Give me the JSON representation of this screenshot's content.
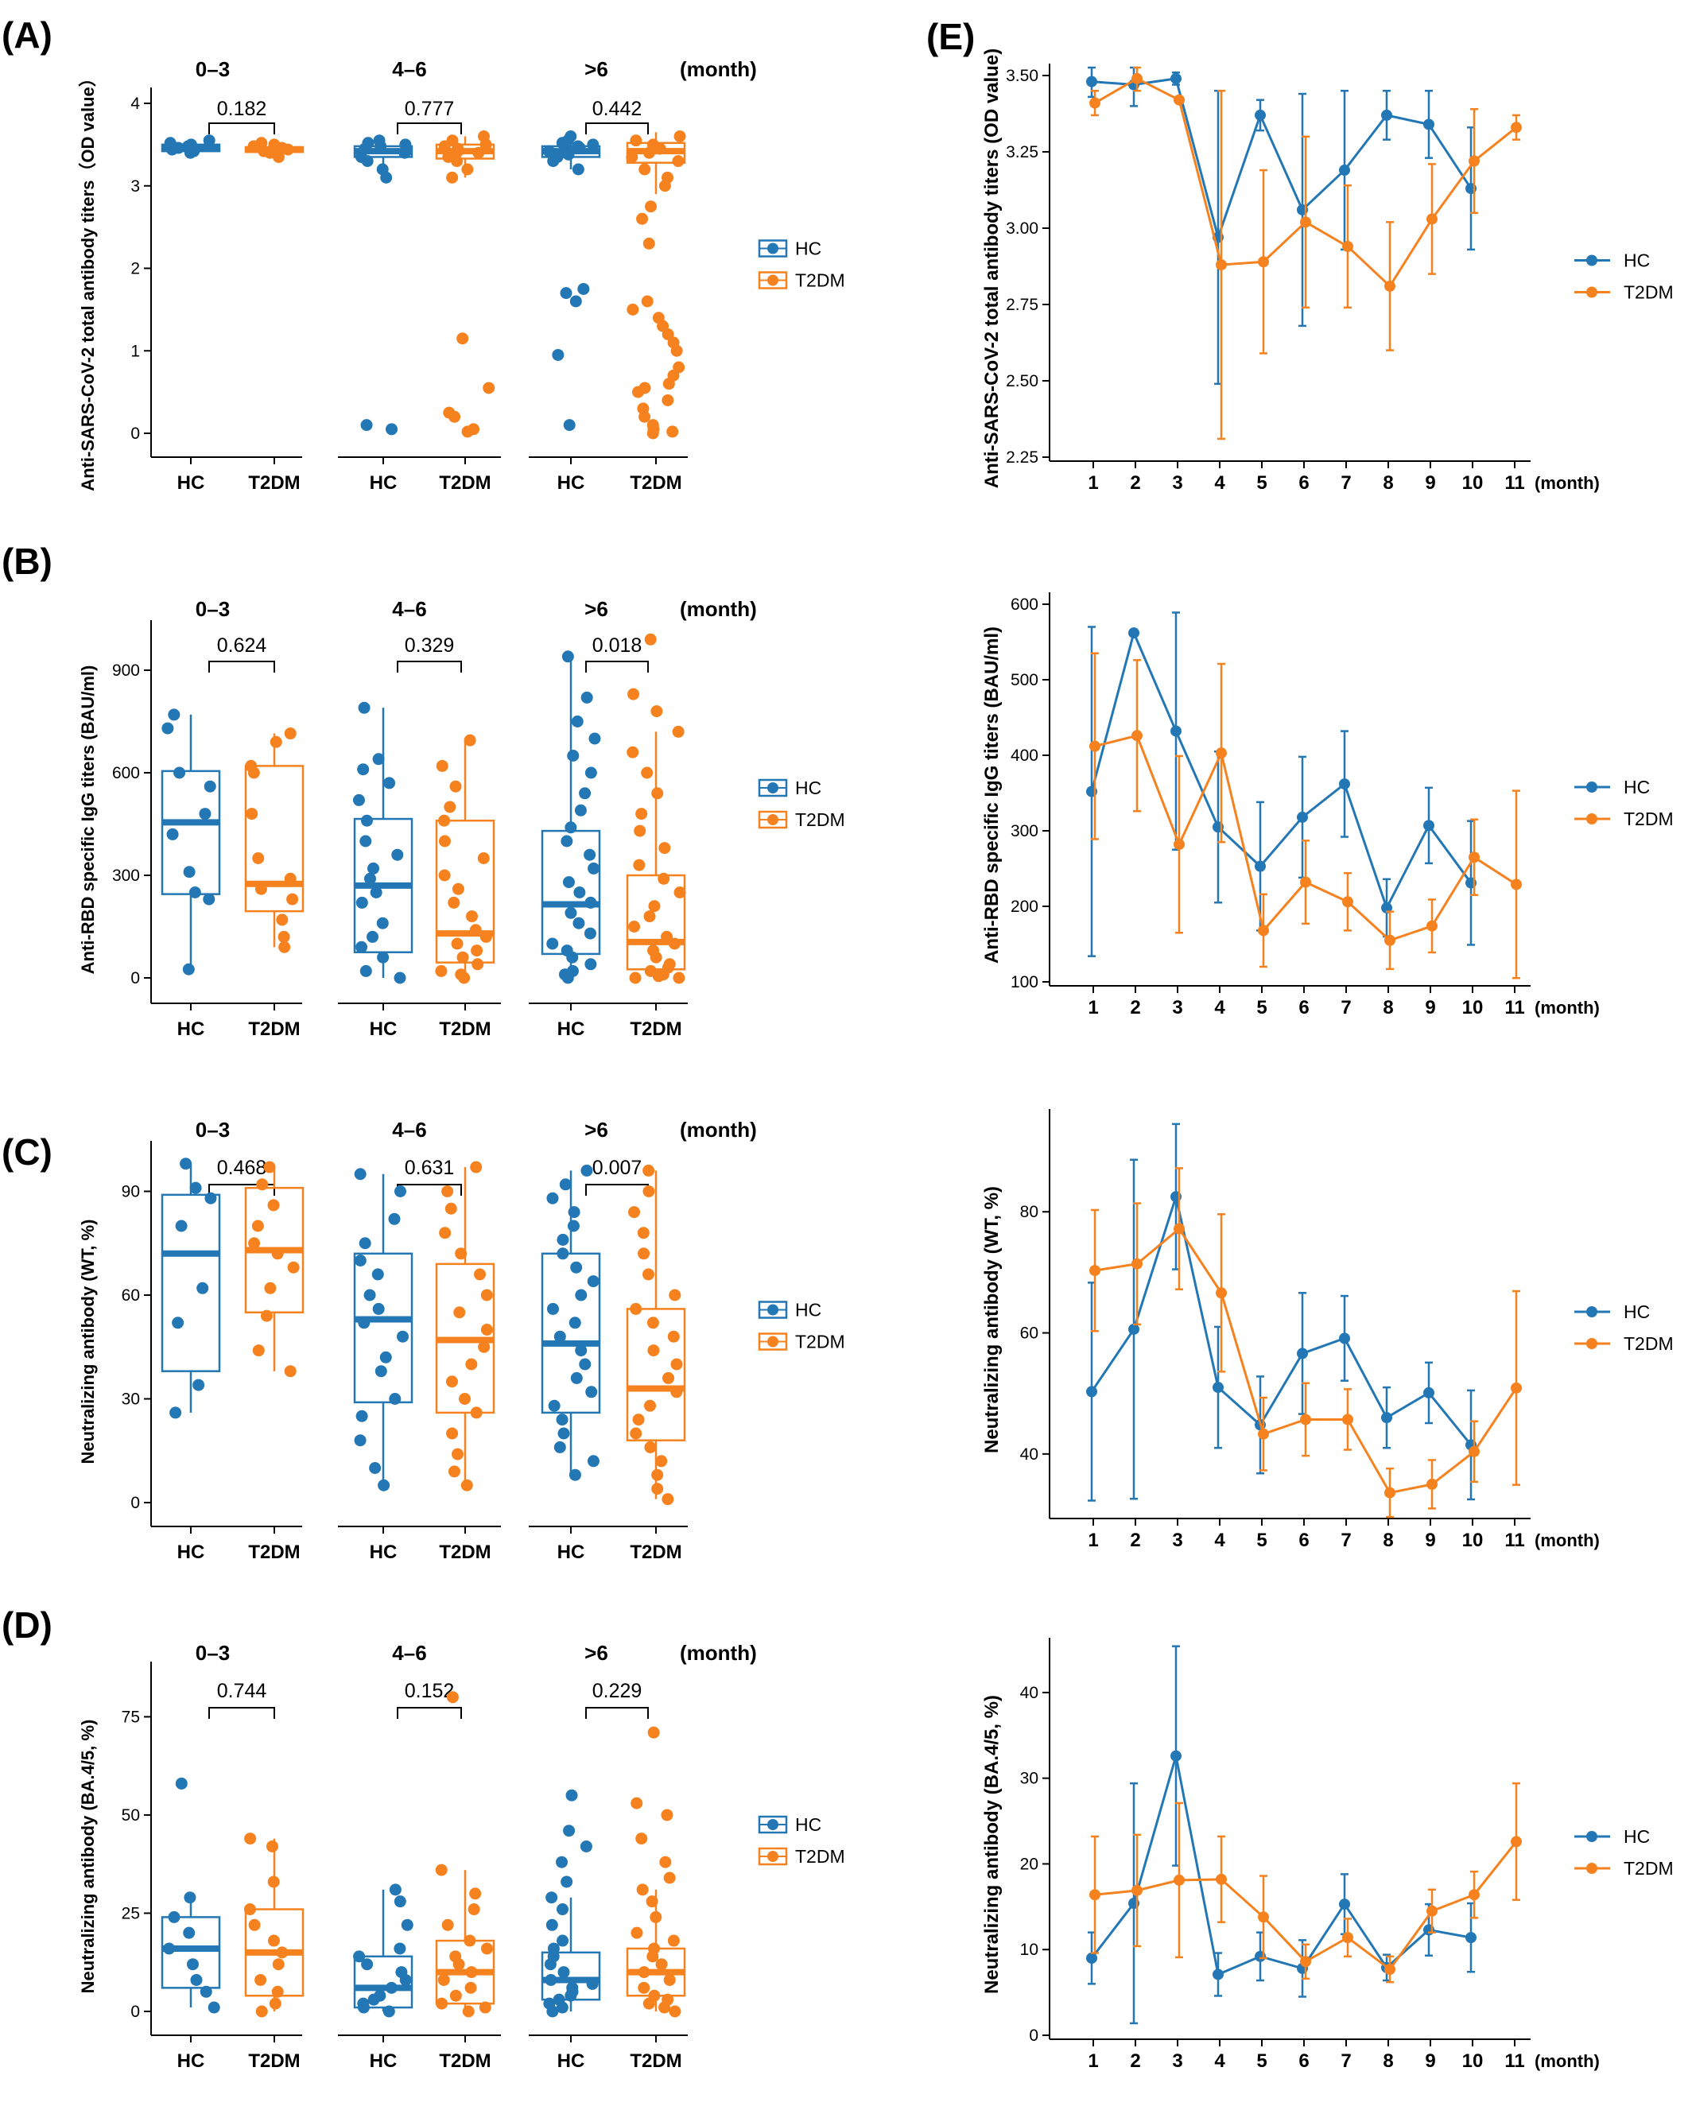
{
  "colors": {
    "hc": "#2277b4",
    "t2dm": "#f5821f",
    "axis": "#000000",
    "bracket": "#000000"
  },
  "panel_letters": [
    "(A)",
    "(B)",
    "(C)",
    "(D)",
    "(E)"
  ],
  "group_labels": [
    "0–3",
    "4–6",
    ">6"
  ],
  "month_label": "(month)",
  "x_categories": [
    "HC",
    "T2DM"
  ],
  "legend": [
    "HC",
    "T2DM"
  ],
  "chart_data": [
    {
      "id": "A",
      "type": "box",
      "ylabel": "Anti-SARS-CoV-2 total antibody titers（OD value）",
      "ylim": [
        0,
        4
      ],
      "yticks": [
        0,
        1,
        2,
        3,
        4
      ],
      "groups": [
        {
          "name": "0–3",
          "p": "0.182",
          "HC": {
            "median": 3.46,
            "q1": 3.42,
            "q3": 3.5,
            "wlo": 3.4,
            "whi": 3.55,
            "points": [
              3.4,
              3.42,
              3.44,
              3.46,
              3.48,
              3.5,
              3.52,
              3.55
            ]
          },
          "T2DM": {
            "median": 3.44,
            "q1": 3.41,
            "q3": 3.47,
            "wlo": 3.35,
            "whi": 3.52,
            "points": [
              3.35,
              3.4,
              3.42,
              3.44,
              3.46,
              3.48,
              3.5,
              3.52
            ]
          }
        },
        {
          "name": "4–6",
          "p": "0.777",
          "HC": {
            "median": 3.42,
            "q1": 3.35,
            "q3": 3.48,
            "wlo": 3.1,
            "whi": 3.55,
            "points": [
              0.05,
              0.1,
              3.1,
              3.2,
              3.3,
              3.35,
              3.4,
              3.42,
              3.45,
              3.48,
              3.5,
              3.52,
              3.55
            ]
          },
          "T2DM": {
            "median": 3.42,
            "q1": 3.33,
            "q3": 3.5,
            "wlo": 3.1,
            "whi": 3.6,
            "points": [
              0.02,
              0.05,
              0.2,
              0.25,
              0.55,
              1.15,
              3.1,
              3.2,
              3.3,
              3.35,
              3.4,
              3.42,
              3.45,
              3.48,
              3.5,
              3.55,
              3.6
            ]
          }
        },
        {
          "name": ">6",
          "p": "0.442",
          "HC": {
            "median": 3.42,
            "q1": 3.35,
            "q3": 3.48,
            "wlo": 3.2,
            "whi": 3.6,
            "points": [
              0.1,
              0.95,
              1.6,
              1.7,
              1.75,
              3.2,
              3.3,
              3.35,
              3.38,
              3.4,
              3.42,
              3.44,
              3.46,
              3.48,
              3.5,
              3.52,
              3.55,
              3.6
            ]
          },
          "T2DM": {
            "median": 3.42,
            "q1": 3.28,
            "q3": 3.52,
            "wlo": 2.9,
            "whi": 3.65,
            "points": [
              0.0,
              0.02,
              0.05,
              0.1,
              0.2,
              0.3,
              0.4,
              0.5,
              0.55,
              0.6,
              0.7,
              0.8,
              1.0,
              1.1,
              1.2,
              1.3,
              1.4,
              1.5,
              1.6,
              2.3,
              2.6,
              2.75,
              3.0,
              3.1,
              3.2,
              3.3,
              3.35,
              3.4,
              3.45,
              3.5,
              3.55,
              3.6
            ]
          }
        }
      ]
    },
    {
      "id": "B",
      "type": "box",
      "ylabel": "Anti-RBD specific IgG titers (BAU/ml)",
      "ylim": [
        0,
        1000
      ],
      "yticks": [
        0,
        300,
        600,
        900
      ],
      "groups": [
        {
          "name": "0–3",
          "p": "0.624",
          "HC": {
            "median": 455,
            "q1": 245,
            "q3": 605,
            "wlo": 25,
            "whi": 770,
            "points": [
              25,
              230,
              250,
              310,
              420,
              480,
              560,
              600,
              730,
              770
            ]
          },
          "T2DM": {
            "median": 275,
            "q1": 195,
            "q3": 620,
            "wlo": 90,
            "whi": 715,
            "points": [
              90,
              120,
              170,
              230,
              260,
              290,
              350,
              480,
              600,
              620,
              690,
              715
            ]
          }
        },
        {
          "name": "4–6",
          "p": "0.329",
          "HC": {
            "median": 270,
            "q1": 75,
            "q3": 465,
            "wlo": 0,
            "whi": 790,
            "points": [
              0,
              20,
              60,
              90,
              120,
              160,
              220,
              250,
              290,
              320,
              360,
              400,
              460,
              520,
              570,
              610,
              640,
              790
            ]
          },
          "T2DM": {
            "median": 130,
            "q1": 45,
            "q3": 460,
            "wlo": 0,
            "whi": 695,
            "points": [
              0,
              10,
              20,
              40,
              60,
              80,
              100,
              120,
              140,
              180,
              220,
              260,
              300,
              350,
              400,
              460,
              500,
              560,
              620,
              695
            ]
          }
        },
        {
          "name": ">6",
          "p": "0.018",
          "HC": {
            "median": 215,
            "q1": 70,
            "q3": 430,
            "wlo": 0,
            "whi": 940,
            "points": [
              0,
              10,
              20,
              40,
              60,
              80,
              100,
              130,
              160,
              190,
              220,
              250,
              280,
              320,
              360,
              400,
              440,
              490,
              540,
              600,
              650,
              700,
              750,
              820,
              940
            ]
          },
          "T2DM": {
            "median": 105,
            "q1": 25,
            "q3": 300,
            "wlo": 0,
            "whi": 720,
            "points": [
              0,
              0,
              5,
              10,
              20,
              30,
              40,
              60,
              80,
              100,
              120,
              150,
              180,
              210,
              250,
              290,
              330,
              380,
              430,
              480,
              540,
              600,
              660,
              720,
              780,
              830,
              990
            ]
          }
        }
      ]
    },
    {
      "id": "C",
      "type": "box",
      "ylabel": "Neutralizing antibody (WT, %)",
      "ylim": [
        0,
        100
      ],
      "yticks": [
        0,
        30,
        60,
        90
      ],
      "groups": [
        {
          "name": "0–3",
          "p": "0.468",
          "HC": {
            "median": 72,
            "q1": 38,
            "q3": 89,
            "wlo": 26,
            "whi": 98,
            "points": [
              26,
              34,
              52,
              62,
              80,
              88,
              91,
              98
            ]
          },
          "T2DM": {
            "median": 73,
            "q1": 55,
            "q3": 91,
            "wlo": 38,
            "whi": 97,
            "points": [
              38,
              44,
              54,
              62,
              68,
              72,
              75,
              80,
              86,
              92,
              97
            ]
          }
        },
        {
          "name": "4–6",
          "p": "0.631",
          "HC": {
            "median": 53,
            "q1": 29,
            "q3": 72,
            "wlo": 5,
            "whi": 95,
            "points": [
              5,
              10,
              18,
              25,
              30,
              38,
              42,
              48,
              52,
              56,
              60,
              66,
              70,
              75,
              82,
              90,
              95
            ]
          },
          "T2DM": {
            "median": 47,
            "q1": 26,
            "q3": 69,
            "wlo": 5,
            "whi": 97,
            "points": [
              5,
              9,
              14,
              20,
              26,
              30,
              35,
              40,
              45,
              50,
              55,
              60,
              66,
              72,
              78,
              85,
              90,
              97
            ]
          }
        },
        {
          "name": ">6",
          "p": "0.007",
          "HC": {
            "median": 46,
            "q1": 26,
            "q3": 72,
            "wlo": 8,
            "whi": 96,
            "points": [
              8,
              12,
              16,
              20,
              24,
              28,
              32,
              36,
              40,
              44,
              48,
              52,
              56,
              60,
              64,
              68,
              72,
              76,
              80,
              84,
              88,
              92,
              96
            ]
          },
          "T2DM": {
            "median": 33,
            "q1": 18,
            "q3": 56,
            "wlo": 1,
            "whi": 96,
            "points": [
              1,
              4,
              8,
              12,
              16,
              20,
              24,
              28,
              32,
              36,
              40,
              44,
              48,
              52,
              56,
              60,
              66,
              72,
              78,
              84,
              90,
              96
            ]
          }
        }
      ]
    },
    {
      "id": "D",
      "type": "box",
      "ylabel": "Neutralizing antibody (BA.4/5, %)",
      "ylim": [
        0,
        85
      ],
      "yticks": [
        0,
        25,
        50,
        75
      ],
      "groups": [
        {
          "name": "0–3",
          "p": "0.744",
          "HC": {
            "median": 16,
            "q1": 6,
            "q3": 24,
            "wlo": 1,
            "whi": 29,
            "points": [
              1,
              5,
              8,
              12,
              16,
              20,
              24,
              29,
              58
            ]
          },
          "T2DM": {
            "median": 15,
            "q1": 4,
            "q3": 26,
            "wlo": 0,
            "whi": 44,
            "points": [
              0,
              2,
              5,
              8,
              12,
              15,
              18,
              22,
              26,
              33,
              42,
              44
            ]
          }
        },
        {
          "name": "4–6",
          "p": "0.152",
          "HC": {
            "median": 6,
            "q1": 1,
            "q3": 14,
            "wlo": 0,
            "whi": 31,
            "points": [
              0,
              1,
              2,
              3,
              4,
              6,
              8,
              10,
              12,
              14,
              16,
              22,
              28,
              31
            ]
          },
          "T2DM": {
            "median": 10,
            "q1": 2,
            "q3": 18,
            "wlo": 0,
            "whi": 36,
            "points": [
              0,
              1,
              2,
              4,
              6,
              8,
              10,
              12,
              14,
              16,
              18,
              22,
              26,
              30,
              36,
              80
            ]
          }
        },
        {
          "name": ">6",
          "p": "0.229",
          "HC": {
            "median": 8,
            "q1": 3,
            "q3": 15,
            "wlo": 0,
            "whi": 29,
            "points": [
              0,
              1,
              2,
              3,
              4,
              5,
              6,
              7,
              8,
              10,
              12,
              14,
              16,
              18,
              22,
              26,
              29,
              33,
              38,
              42,
              46,
              55
            ]
          },
          "T2DM": {
            "median": 10,
            "q1": 4,
            "q3": 16,
            "wlo": 0,
            "whi": 31,
            "points": [
              0,
              1,
              2,
              3,
              4,
              6,
              8,
              10,
              12,
              14,
              16,
              18,
              20,
              24,
              28,
              31,
              34,
              38,
              44,
              50,
              53,
              71
            ]
          }
        }
      ]
    },
    {
      "id": "E1",
      "type": "line",
      "ylabel": "Anti-SARS-CoV-2 total antibody titers (OD value)",
      "ylim": [
        2.25,
        3.5
      ],
      "yticks": [
        "2.25",
        "2.50",
        "2.75",
        "3.00",
        "3.25",
        "3.50"
      ],
      "x": [
        1,
        2,
        3,
        4,
        5,
        6,
        7,
        8,
        9,
        10,
        11
      ],
      "series": [
        {
          "name": "HC",
          "y": [
            3.48,
            3.47,
            3.49,
            2.97,
            3.37,
            3.06,
            3.19,
            3.37,
            3.34,
            3.13,
            null
          ],
          "err": [
            0.05,
            0.07,
            0.02,
            0.48,
            0.05,
            0.38,
            0.26,
            0.08,
            0.11,
            0.2,
            null
          ]
        },
        {
          "name": "T2DM",
          "y": [
            3.41,
            3.49,
            3.42,
            2.88,
            2.89,
            3.02,
            2.94,
            2.81,
            3.03,
            3.22,
            3.33
          ],
          "err": [
            0.04,
            0.04,
            0.01,
            0.57,
            0.3,
            0.28,
            0.2,
            0.21,
            0.18,
            0.17,
            0.04
          ]
        }
      ]
    },
    {
      "id": "E2",
      "type": "line",
      "ylabel": "Anti-RBD specific IgG titers (BAU/ml)",
      "ylim": [
        100,
        600
      ],
      "yticks": [
        "100",
        "200",
        "300",
        "400",
        "500",
        "600"
      ],
      "x": [
        1,
        2,
        3,
        4,
        5,
        6,
        7,
        8,
        9,
        10,
        11
      ],
      "series": [
        {
          "name": "HC",
          "y": [
            352,
            562,
            432,
            305,
            253,
            318,
            362,
            198,
            307,
            231,
            null
          ],
          "err": [
            218,
            0,
            157,
            100,
            85,
            80,
            70,
            38,
            50,
            82,
            null
          ]
        },
        {
          "name": "T2DM",
          "y": [
            412,
            426,
            282,
            403,
            168,
            232,
            206,
            155,
            174,
            265,
            229
          ],
          "err": [
            123,
            100,
            117,
            118,
            48,
            55,
            38,
            38,
            35,
            50,
            124
          ]
        }
      ]
    },
    {
      "id": "E3",
      "type": "line",
      "ylabel": "Neutralizing antibody (WT, %)",
      "ylim": [
        30,
        95
      ],
      "yticks": [
        "40",
        "60",
        "80"
      ],
      "x": [
        1,
        2,
        3,
        4,
        5,
        6,
        7,
        8,
        9,
        10,
        11
      ],
      "series": [
        {
          "name": "HC",
          "y": [
            50.3,
            60.6,
            82.5,
            51,
            44.8,
            56.6,
            59.1,
            46,
            50.1,
            41.5,
            null
          ],
          "err": [
            18,
            28,
            12,
            10,
            8,
            10,
            7,
            5,
            5,
            9,
            null
          ]
        },
        {
          "name": "T2DM",
          "y": [
            70.3,
            71.4,
            77.2,
            66.6,
            43.3,
            45.7,
            45.7,
            33.6,
            35,
            40.4,
            50.9
          ],
          "err": [
            10,
            10,
            10,
            13,
            6,
            6,
            5,
            4,
            4,
            5,
            16
          ]
        }
      ]
    },
    {
      "id": "E4",
      "type": "line",
      "ylabel": "Neutralizing antibody (BA.4/5, %)",
      "ylim": [
        0,
        45
      ],
      "yticks": [
        "0",
        "10",
        "20",
        "30",
        "40"
      ],
      "x": [
        1,
        2,
        3,
        4,
        5,
        6,
        7,
        8,
        9,
        10,
        11
      ],
      "series": [
        {
          "name": "HC",
          "y": [
            9,
            15.4,
            32.6,
            7.1,
            9.2,
            7.8,
            15.3,
            7.9,
            12.3,
            11.4,
            null
          ],
          "err": [
            3,
            14,
            12.8,
            2.5,
            2.8,
            3.3,
            3.5,
            1.5,
            3,
            4,
            null
          ]
        },
        {
          "name": "T2DM",
          "y": [
            16.4,
            16.9,
            18.1,
            18.2,
            13.8,
            8.6,
            11.4,
            7.7,
            14.5,
            16.4,
            22.6
          ],
          "err": [
            6.8,
            6.5,
            9,
            5,
            4.8,
            2,
            2.2,
            1.5,
            2.5,
            2.7,
            6.8
          ]
        }
      ]
    }
  ]
}
